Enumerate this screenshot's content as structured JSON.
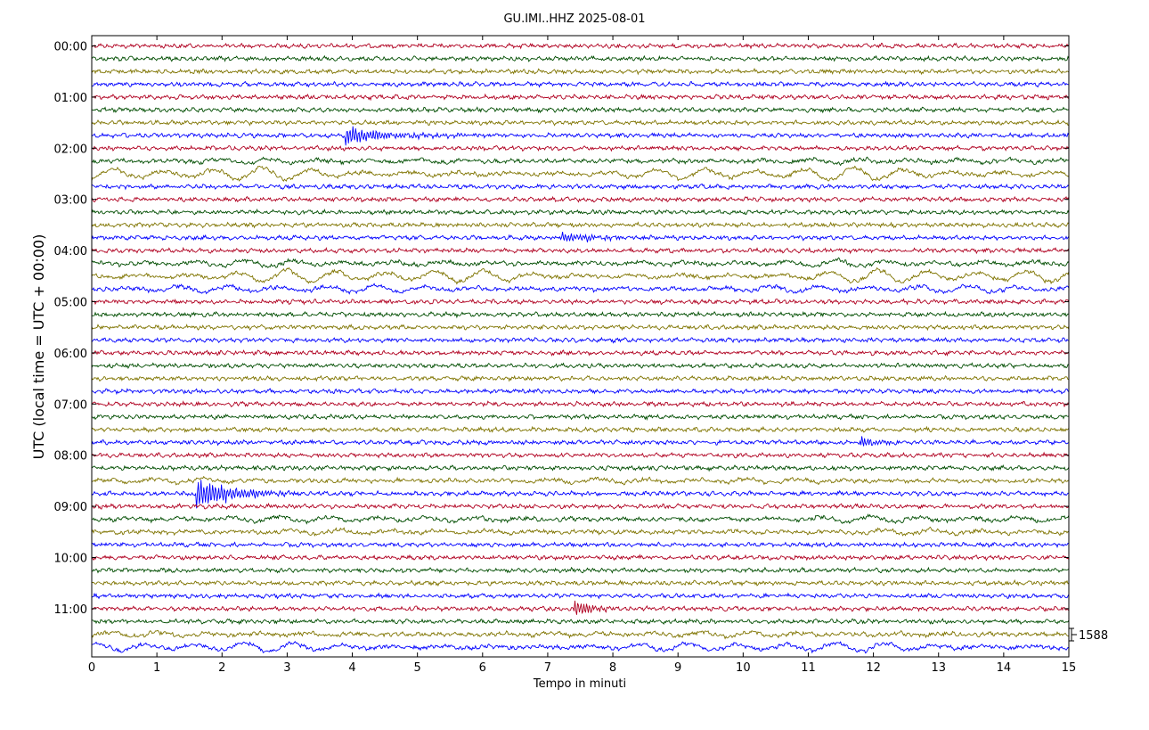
{
  "chart_data": {
    "type": "line",
    "title": "GU.IMI..HHZ 2025-08-01",
    "xlabel": "Tempo in minuti",
    "ylabel": "UTC (local time = UTC + 00:00)",
    "xlim": [
      0,
      15
    ],
    "x_ticks": [
      0,
      1,
      2,
      3,
      4,
      5,
      6,
      7,
      8,
      9,
      10,
      11,
      12,
      13,
      14,
      15
    ],
    "y_tick_labels": [
      "00:00",
      "01:00",
      "02:00",
      "03:00",
      "04:00",
      "05:00",
      "06:00",
      "07:00",
      "08:00",
      "09:00",
      "10:00",
      "11:00"
    ],
    "traces_per_hour": 4,
    "trace_count": 48,
    "trace_colors": [
      "#b00020",
      "#004d00",
      "#7f7400",
      "#0000ff"
    ],
    "scale_label": "1588",
    "grid": false,
    "events": [
      {
        "trace": 7,
        "start_min": 3.9,
        "duration_min": 1.8,
        "amplitude": 1.0
      },
      {
        "trace": 35,
        "start_min": 1.6,
        "duration_min": 1.6,
        "amplitude": 1.6
      },
      {
        "trace": 31,
        "start_min": 11.8,
        "duration_min": 0.6,
        "amplitude": 0.6
      },
      {
        "trace": 15,
        "start_min": 7.2,
        "duration_min": 1.6,
        "amplitude": 0.5
      },
      {
        "trace": 44,
        "start_min": 7.4,
        "duration_min": 0.8,
        "amplitude": 0.9
      }
    ],
    "swells": [
      {
        "trace": 10,
        "amplitude": 1.4
      },
      {
        "trace": 9,
        "amplitude": 0.5
      },
      {
        "trace": 17,
        "amplitude": 0.7
      },
      {
        "trace": 18,
        "amplitude": 1.5
      },
      {
        "trace": 19,
        "amplitude": 0.8
      },
      {
        "trace": 34,
        "amplitude": 0.5
      },
      {
        "trace": 37,
        "amplitude": 0.6
      },
      {
        "trace": 38,
        "amplitude": 0.5
      },
      {
        "trace": 46,
        "amplitude": 0.5
      },
      {
        "trace": 47,
        "amplitude": 1.0
      }
    ]
  }
}
